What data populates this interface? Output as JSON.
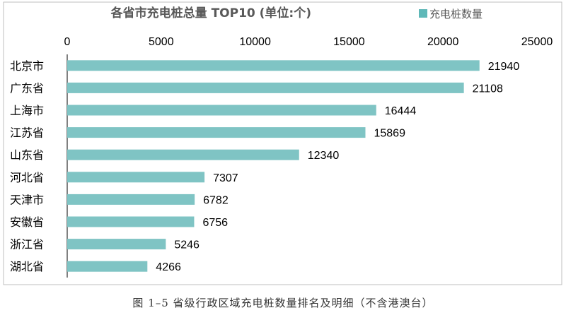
{
  "chart_data": {
    "type": "bar",
    "orientation": "horizontal",
    "title": "各省市充电桩总量  TOP10  (单位:个)",
    "legend": [
      "充电桩数量"
    ],
    "legend_position": "top-right",
    "categories": [
      "北京市",
      "广东省",
      "上海市",
      "江苏省",
      "山东省",
      "河北省",
      "天津市",
      "安徽省",
      "浙江省",
      "湖北省"
    ],
    "series": [
      {
        "name": "充电桩数量",
        "values": [
          21940,
          21108,
          16444,
          15869,
          12340,
          7307,
          6782,
          6756,
          5246,
          4266
        ],
        "color": "#7fc4c4"
      }
    ],
    "xlim": [
      0,
      25000
    ],
    "x_ticks": [
      0,
      5000,
      10000,
      15000,
      20000,
      25000
    ],
    "x_axis_position": "top",
    "grid": false,
    "xlabel": "",
    "ylabel": ""
  },
  "caption": "图 1–5 省级行政区域充电桩数量排名及明细（不含港澳台）",
  "colors": {
    "bar": "#7fc4c4",
    "legend_swatch": "#5fb8b8",
    "title": "#595959"
  }
}
